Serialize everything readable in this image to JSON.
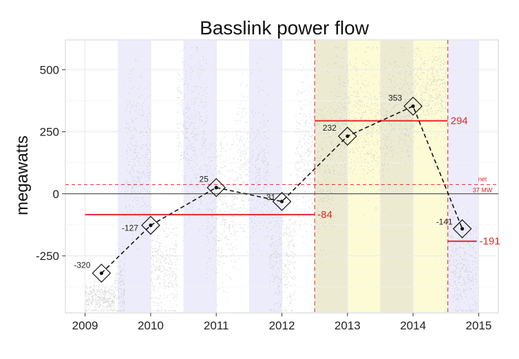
{
  "chart_data": {
    "type": "scatter",
    "title": "Basslink power flow",
    "xlabel": "",
    "ylabel": "megawatts",
    "xlim": [
      2008.7,
      2015.3
    ],
    "ylim": [
      -480,
      620
    ],
    "xticks": [
      2009,
      2010,
      2011,
      2012,
      2013,
      2014,
      2015
    ],
    "xtick_labels": [
      "2009",
      "2010",
      "2011",
      "2012",
      "2013",
      "2014",
      "2015"
    ],
    "yticks": [
      -250,
      0,
      250,
      500
    ],
    "ytick_labels": [
      "-250",
      "0",
      "250",
      "500"
    ],
    "grid": true,
    "colors": {
      "points": "#b0b0b0",
      "lavender_band": "#ececfb",
      "olive_band": "#ecebd2",
      "yellow_band": "#fdfbd6",
      "red": "#e8242a",
      "panel_bg": "#ffffff",
      "grid": "#ebebeb"
    },
    "shaded_periods": [
      {
        "start": 2009.5,
        "end": 2010.0,
        "color": "lavender"
      },
      {
        "start": 2010.5,
        "end": 2011.0,
        "color": "lavender"
      },
      {
        "start": 2011.5,
        "end": 2012.0,
        "color": "lavender"
      },
      {
        "start": 2012.5,
        "end": 2013.0,
        "color": "olive"
      },
      {
        "start": 2013.0,
        "end": 2013.5,
        "color": "yellow"
      },
      {
        "start": 2013.5,
        "end": 2014.0,
        "color": "olive"
      },
      {
        "start": 2014.0,
        "end": 2014.53,
        "color": "yellow"
      },
      {
        "start": 2014.53,
        "end": 2015.0,
        "color": "lavender"
      }
    ],
    "yearly_means": {
      "x": [
        2009.25,
        2010.0,
        2011.0,
        2012.0,
        2013.0,
        2014.0,
        2014.75
      ],
      "y": [
        -320,
        -127,
        25,
        -31,
        232,
        353,
        -141
      ],
      "labels": [
        "-320",
        "-127",
        "25",
        "-31",
        "232",
        "353",
        "-141"
      ]
    },
    "period_means": [
      {
        "start": 2009.0,
        "end": 2012.5,
        "value": -84,
        "label": "-84"
      },
      {
        "start": 2012.5,
        "end": 2014.53,
        "value": 294,
        "label": "294"
      },
      {
        "start": 2014.53,
        "end": 2014.97,
        "value": -191,
        "label": "-191"
      }
    ],
    "net_line": {
      "value": 37,
      "label_top": "net",
      "label_bottom": "37 MW"
    },
    "vertical_markers": [
      2012.5,
      2014.53
    ],
    "zero_line": 0,
    "scatter_segments": [
      {
        "start": 2009.0,
        "end": 2009.45,
        "mean": -420,
        "spread": 50
      },
      {
        "start": 2009.45,
        "end": 2009.6,
        "mean": -380,
        "spread": 120
      },
      {
        "start": 2009.6,
        "end": 2010.0,
        "mean": 150,
        "spread": 260
      },
      {
        "start": 2010.0,
        "end": 2010.4,
        "mean": -300,
        "spread": 180
      },
      {
        "start": 2010.4,
        "end": 2010.85,
        "mean": 250,
        "spread": 280
      },
      {
        "start": 2010.85,
        "end": 2011.3,
        "mean": -50,
        "spread": 250
      },
      {
        "start": 2011.3,
        "end": 2011.8,
        "mean": 100,
        "spread": 260
      },
      {
        "start": 2011.8,
        "end": 2012.2,
        "mean": -250,
        "spread": 200
      },
      {
        "start": 2012.2,
        "end": 2012.5,
        "mean": 150,
        "spread": 250
      },
      {
        "start": 2012.5,
        "end": 2012.8,
        "mean": 120,
        "spread": 300
      },
      {
        "start": 2012.8,
        "end": 2013.2,
        "mean": 300,
        "spread": 230
      },
      {
        "start": 2013.2,
        "end": 2013.7,
        "mean": 280,
        "spread": 250
      },
      {
        "start": 2013.7,
        "end": 2014.0,
        "mean": 350,
        "spread": 200
      },
      {
        "start": 2014.0,
        "end": 2014.5,
        "mean": 420,
        "spread": 150
      },
      {
        "start": 2014.5,
        "end": 2014.6,
        "mean": -150,
        "spread": 250
      },
      {
        "start": 2014.6,
        "end": 2014.97,
        "mean": -300,
        "spread": 180
      }
    ]
  }
}
